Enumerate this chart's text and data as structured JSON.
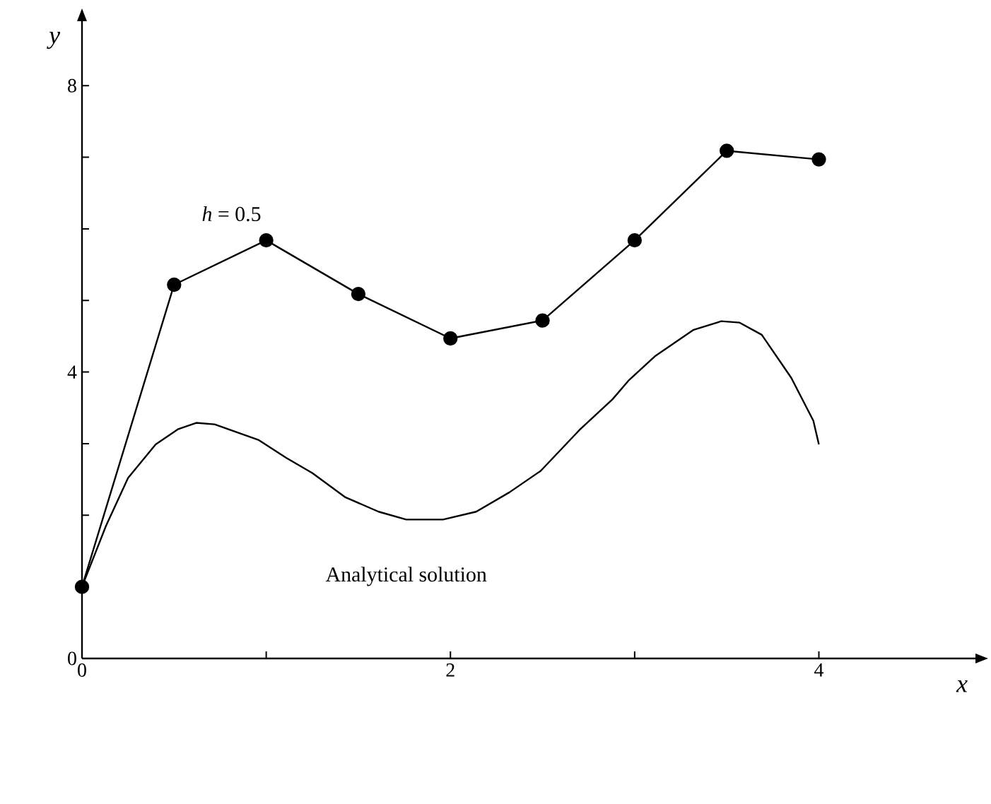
{
  "chart_data": {
    "type": "line",
    "xlabel": "x",
    "ylabel": "y",
    "xlim": [
      0,
      4.85
    ],
    "ylim": [
      0,
      8.9
    ],
    "xticks": [
      0,
      {
        "value": 1,
        "label": null
      },
      2,
      {
        "value": 3,
        "label": null
      },
      4
    ],
    "yticks": [
      0,
      {
        "value": 1,
        "label": null
      },
      {
        "value": 2,
        "label": null
      },
      {
        "value": 3,
        "label": null
      },
      4,
      {
        "value": 5,
        "label": null
      },
      {
        "value": 6,
        "label": null
      },
      {
        "value": 7,
        "label": null
      },
      8
    ],
    "grid": false,
    "series": [
      {
        "name": "*h* = 0.5",
        "color": "#000000",
        "marker": "circle",
        "x": [
          0,
          0.5,
          1,
          1.5,
          2,
          2.5,
          3,
          3.5,
          4
        ],
        "values": [
          1,
          5.22,
          5.84,
          5.09,
          4.47,
          4.72,
          5.84,
          7.09,
          6.97
        ]
      },
      {
        "name": "Analytical solution",
        "color": "#000000",
        "marker": "none",
        "x": [
          0,
          0.13,
          0.25,
          0.4,
          0.52,
          0.62,
          0.72,
          0.96,
          1.11,
          1.25,
          1.43,
          1.61,
          1.76,
          1.96,
          2.14,
          2.32,
          2.49,
          2.7,
          2.88,
          2.97,
          3.11,
          3.32,
          3.47,
          3.57,
          3.69,
          3.85,
          3.97,
          4.0
        ],
        "values": [
          1,
          1.85,
          2.52,
          2.99,
          3.2,
          3.29,
          3.27,
          3.05,
          2.8,
          2.59,
          2.25,
          2.05,
          1.94,
          1.94,
          2.05,
          2.32,
          2.62,
          3.19,
          3.62,
          3.89,
          4.22,
          4.59,
          4.71,
          4.69,
          4.52,
          3.92,
          3.32,
          2.99
        ]
      }
    ]
  }
}
